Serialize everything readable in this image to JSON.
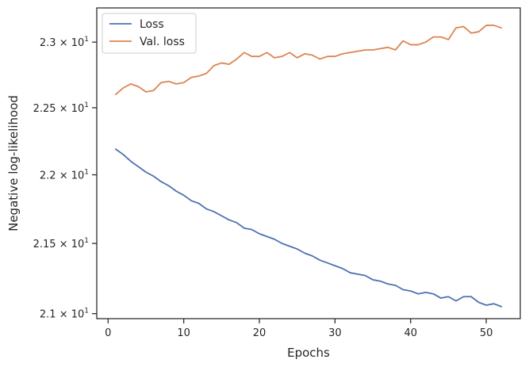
{
  "chart_data": {
    "type": "line",
    "xlabel": "Epochs",
    "ylabel": "Negative log-likelihood",
    "xlim": [
      -1.5,
      54.5
    ],
    "ylim": [
      20.965,
      23.265
    ],
    "y_scale": "log",
    "grid": false,
    "legend_position": "top-left",
    "x_ticks": [
      0,
      10,
      20,
      30,
      40,
      50
    ],
    "x_tick_labels": [
      "0",
      "10",
      "20",
      "30",
      "40",
      "50"
    ],
    "y_ticks": [
      21,
      21.5,
      22,
      22.5,
      23
    ],
    "y_tick_labels": [
      {
        "mantissa": "2.1",
        "times": "×",
        "base": "10",
        "exp": "1"
      },
      {
        "mantissa": "2.15",
        "times": "×",
        "base": "10",
        "exp": "1"
      },
      {
        "mantissa": "2.2",
        "times": "×",
        "base": "10",
        "exp": "1"
      },
      {
        "mantissa": "2.25",
        "times": "×",
        "base": "10",
        "exp": "1"
      },
      {
        "mantissa": "2.3",
        "times": "×",
        "base": "10",
        "exp": "1"
      }
    ],
    "x": [
      1,
      2,
      3,
      4,
      5,
      6,
      7,
      8,
      9,
      10,
      11,
      12,
      13,
      14,
      15,
      16,
      17,
      18,
      19,
      20,
      21,
      22,
      23,
      24,
      25,
      26,
      27,
      28,
      29,
      30,
      31,
      32,
      33,
      34,
      35,
      36,
      37,
      38,
      39,
      40,
      41,
      42,
      43,
      44,
      45,
      46,
      47,
      48,
      49,
      50,
      51,
      52
    ],
    "series": [
      {
        "name": "Loss",
        "color": "#4c72b0",
        "values": [
          22.19,
          22.15,
          22.1,
          22.06,
          22.02,
          21.99,
          21.95,
          21.92,
          21.88,
          21.85,
          21.81,
          21.79,
          21.75,
          21.73,
          21.7,
          21.67,
          21.65,
          21.61,
          21.6,
          21.57,
          21.55,
          21.53,
          21.5,
          21.48,
          21.46,
          21.43,
          21.41,
          21.38,
          21.36,
          21.34,
          21.32,
          21.29,
          21.28,
          21.27,
          21.24,
          21.23,
          21.21,
          21.2,
          21.17,
          21.16,
          21.14,
          21.15,
          21.14,
          21.11,
          21.12,
          21.09,
          21.12,
          21.12,
          21.08,
          21.06,
          21.07,
          21.05
        ]
      },
      {
        "name": "Val. loss",
        "color": "#dd8452",
        "values": [
          22.6,
          22.65,
          22.68,
          22.66,
          22.62,
          22.63,
          22.69,
          22.7,
          22.68,
          22.69,
          22.73,
          22.74,
          22.76,
          22.82,
          22.84,
          22.83,
          22.87,
          22.92,
          22.89,
          22.89,
          22.92,
          22.88,
          22.89,
          22.92,
          22.88,
          22.91,
          22.9,
          22.87,
          22.89,
          22.89,
          22.91,
          22.92,
          22.93,
          22.94,
          22.94,
          22.95,
          22.96,
          22.94,
          23.01,
          22.98,
          22.98,
          23.0,
          23.04,
          23.04,
          23.02,
          23.11,
          23.12,
          23.07,
          23.08,
          23.13,
          23.13,
          23.11
        ]
      }
    ]
  }
}
